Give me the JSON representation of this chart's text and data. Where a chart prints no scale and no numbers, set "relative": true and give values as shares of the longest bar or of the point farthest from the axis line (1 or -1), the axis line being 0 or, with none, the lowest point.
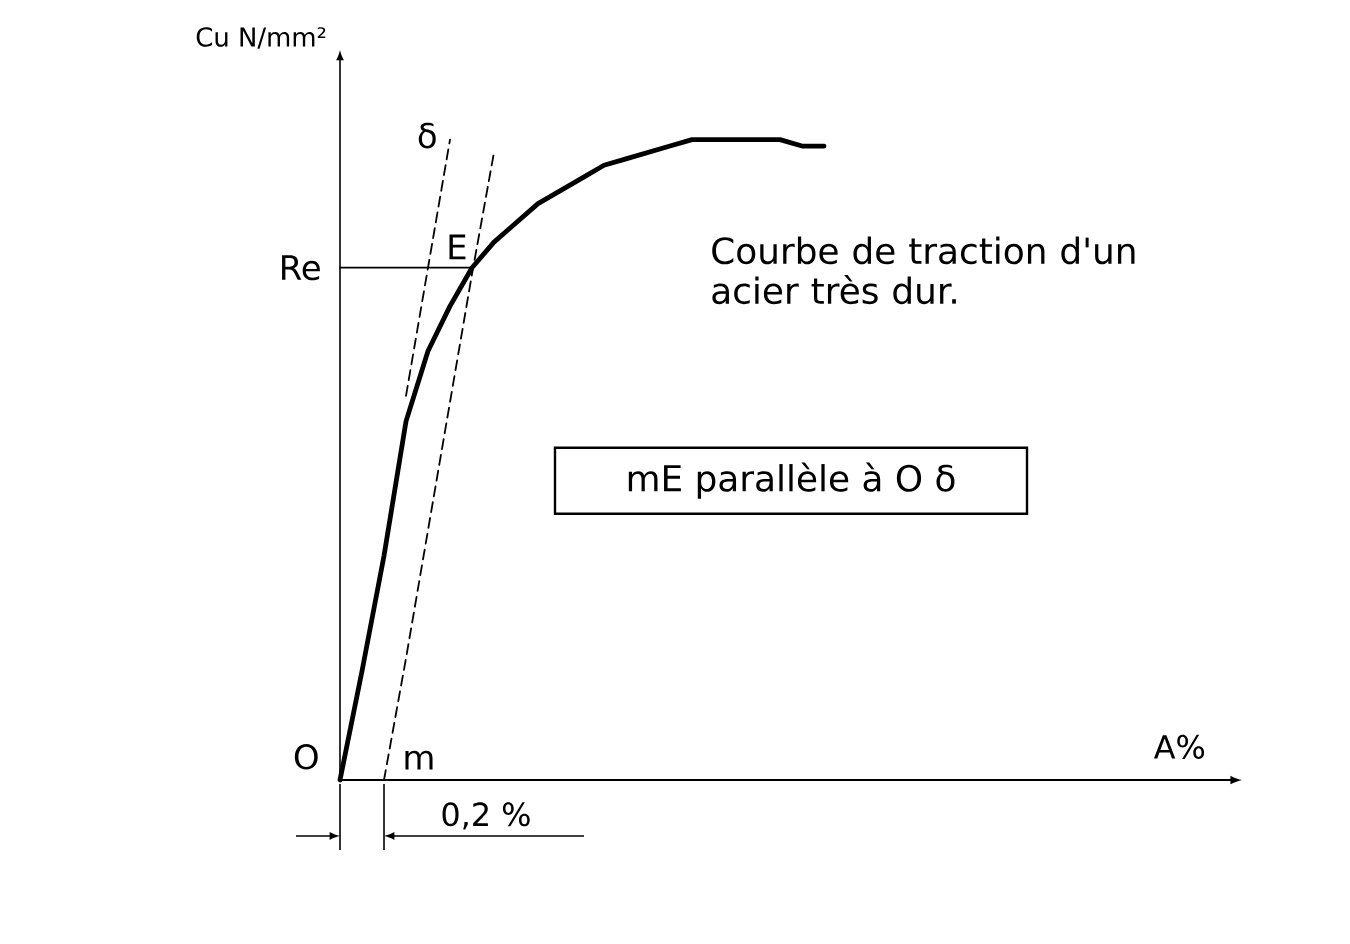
{
  "chart_data": {
    "type": "line",
    "relative": true,
    "xlabel": "A%",
    "ylabel": "Cu N/mm²",
    "categories": [
      null,
      null,
      null,
      null,
      null,
      null,
      null,
      null,
      null,
      null,
      null,
      null,
      null,
      null,
      null,
      null,
      null,
      null,
      null,
      null,
      null,
      null,
      null,
      null,
      null,
      null,
      null,
      null,
      null,
      null,
      null,
      null,
      null,
      null,
      null,
      null,
      null,
      null,
      null,
      null,
      null,
      null
    ],
    "series": [
      {
        "name": "Courbe de traction d'un acier très dur.",
        "color": "#000000",
        "values": [
          0,
          0.17,
          0.35,
          0.56,
          0.67,
          0.74,
          0.8,
          0.84,
          0.87,
          0.9,
          0.92,
          0.94,
          0.96,
          0.97,
          0.98,
          0.99,
          1.0,
          1.0,
          1.0,
          1.0,
          1.0,
          0.99,
          0.99,
          null,
          null,
          null,
          null,
          null,
          null,
          null,
          null,
          null,
          null,
          null,
          null,
          null,
          null,
          null,
          null,
          null,
          null,
          null
        ]
      },
      {
        "name": "Re",
        "color": "#000000",
        "values": [
          0.8,
          0.8,
          0.8,
          0.8,
          0.8,
          0.8,
          0.8,
          null,
          null,
          null,
          null,
          null,
          null,
          null,
          null,
          null,
          null,
          null,
          null,
          null,
          null,
          null,
          null,
          null,
          null,
          null,
          null,
          null,
          null,
          null,
          null,
          null,
          null,
          null,
          null,
          null,
          null,
          null,
          null,
          null,
          null,
          null
        ]
      },
      {
        "name": "δ",
        "color": "#000000",
        "line_style": "dashed",
        "values": [
          null,
          null,
          null,
          0.6,
          0.8,
          1.0,
          null,
          null,
          null,
          null,
          null,
          null,
          null,
          null,
          null,
          null,
          null,
          null,
          null,
          null,
          null,
          null,
          null,
          null,
          null,
          null,
          null,
          null,
          null,
          null,
          null,
          null,
          null,
          null,
          null,
          null,
          null,
          null,
          null,
          null,
          null,
          null
        ]
      },
      {
        "color": "#000000",
        "line_style": "dashed",
        "values": [
          null,
          null,
          0,
          0.19,
          0.39,
          0.59,
          0.79,
          0.98,
          null,
          null,
          null,
          null,
          null,
          null,
          null,
          null,
          null,
          null,
          null,
          null,
          null,
          null,
          null,
          null,
          null,
          null,
          null,
          null,
          null,
          null,
          null,
          null,
          null,
          null,
          null,
          null,
          null,
          null,
          null,
          null,
          null,
          null
        ]
      }
    ],
    "annotations": [
      {
        "text": "E",
        "y": 0.8
      },
      "mE parallèle à O δ",
      "O",
      "m",
      "0,2 %"
    ]
  }
}
